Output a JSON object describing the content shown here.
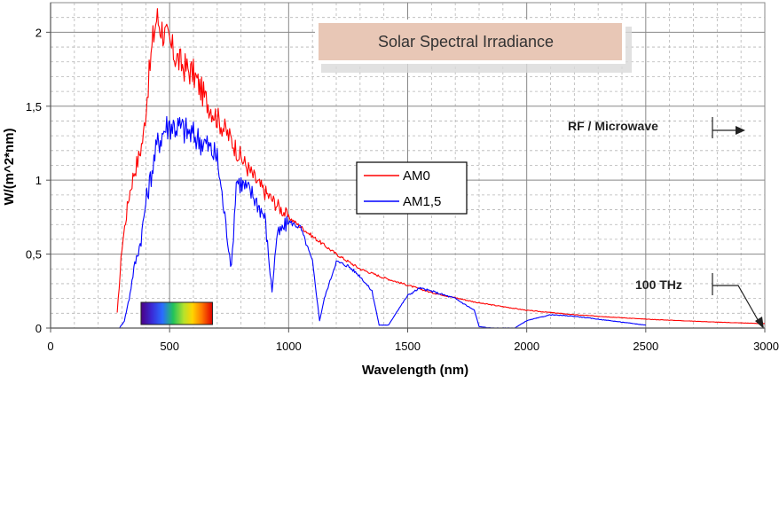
{
  "chart_data": {
    "type": "line",
    "title": "Solar Spectral Irradiance",
    "xlabel": "Wavelength (nm)",
    "ylabel": "W/(m^2*nm)",
    "xlim": [
      0,
      3000
    ],
    "ylim": [
      0,
      2.2
    ],
    "grid": true,
    "x_ticks": [
      0,
      500,
      1000,
      1500,
      2000,
      2500,
      3000
    ],
    "x_tick_labels": [
      "0",
      "500",
      "1000",
      "1500",
      "2000",
      "2500",
      "3000"
    ],
    "y_ticks": [
      0,
      0.5,
      1,
      1.5,
      2
    ],
    "y_tick_labels": [
      "0",
      "0,5",
      "1",
      "1,5",
      "2"
    ],
    "legend_position": "center",
    "series": [
      {
        "name": "AM0",
        "color": "#ff0000",
        "x": [
          280,
          300,
          330,
          350,
          370,
          390,
          410,
          430,
          445,
          460,
          480,
          500,
          520,
          550,
          600,
          650,
          700,
          760,
          800,
          870,
          900,
          1000,
          1100,
          1200,
          1300,
          1400,
          1500,
          1600,
          1800,
          2000,
          2200,
          2500,
          2800,
          3000
        ],
        "y": [
          0.1,
          0.55,
          0.9,
          1.05,
          1.15,
          1.3,
          1.65,
          1.95,
          2.1,
          2.05,
          1.98,
          1.92,
          1.85,
          1.78,
          1.72,
          1.55,
          1.42,
          1.27,
          1.15,
          0.98,
          0.92,
          0.75,
          0.62,
          0.5,
          0.4,
          0.34,
          0.29,
          0.24,
          0.17,
          0.12,
          0.09,
          0.06,
          0.04,
          0.03
        ]
      },
      {
        "name": "AM1,5",
        "color": "#0000ff",
        "x": [
          290,
          310,
          330,
          350,
          380,
          400,
          430,
          450,
          480,
          500,
          550,
          600,
          650,
          700,
          720,
          760,
          780,
          800,
          850,
          900,
          930,
          950,
          1000,
          1050,
          1100,
          1130,
          1150,
          1200,
          1250,
          1300,
          1350,
          1380,
          1420,
          1450,
          1500,
          1550,
          1600,
          1700,
          1780,
          1800,
          1850,
          1950,
          2000,
          2050,
          2100,
          2200,
          2300,
          2400,
          2500
        ],
        "y": [
          0.0,
          0.05,
          0.2,
          0.4,
          0.6,
          0.85,
          1.1,
          1.25,
          1.35,
          1.38,
          1.35,
          1.3,
          1.25,
          1.15,
          0.9,
          0.4,
          1.0,
          0.98,
          0.9,
          0.75,
          0.25,
          0.62,
          0.72,
          0.68,
          0.45,
          0.05,
          0.2,
          0.45,
          0.42,
          0.35,
          0.25,
          0.02,
          0.02,
          0.1,
          0.22,
          0.27,
          0.25,
          0.2,
          0.12,
          0.01,
          0.0,
          0.0,
          0.05,
          0.07,
          0.09,
          0.08,
          0.06,
          0.04,
          0.02
        ]
      }
    ],
    "annotations": [
      {
        "text": "RF / Microwave"
      },
      {
        "text": "100 THz"
      }
    ],
    "inset": {
      "label": "visible spectrum band",
      "x_range": [
        380,
        680
      ],
      "y_range": [
        0,
        0.1
      ]
    }
  }
}
